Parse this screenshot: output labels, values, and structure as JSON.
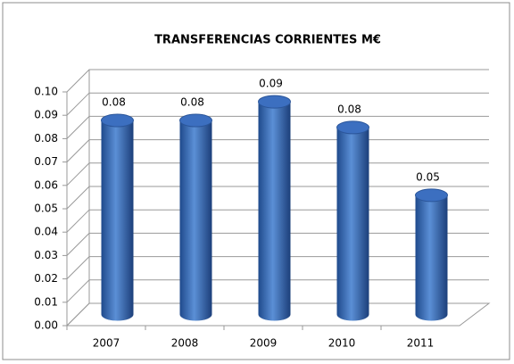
{
  "chart_data": {
    "type": "bar",
    "title": "TRANSFERENCIAS CORRIENTES M€",
    "categories": [
      "2007",
      "2008",
      "2009",
      "2010",
      "2011"
    ],
    "values": [
      0.083,
      0.083,
      0.091,
      0.08,
      0.051
    ],
    "value_labels": [
      "0.08",
      "0.08",
      "0.09",
      "0.08",
      "0.05"
    ],
    "color": "#3a6db5",
    "ylim": [
      0,
      0.1
    ],
    "yticks": [
      {
        "value": 0,
        "label": "0.00"
      },
      {
        "value": 0.01,
        "label": "0.01"
      },
      {
        "value": 0.02,
        "label": "0.02"
      },
      {
        "value": 0.03,
        "label": "0.03"
      },
      {
        "value": 0.04,
        "label": "0.04"
      },
      {
        "value": 0.05,
        "label": "0.05"
      },
      {
        "value": 0.06,
        "label": "0.06"
      },
      {
        "value": 0.07,
        "label": "0.07"
      },
      {
        "value": 0.08,
        "label": "0.08"
      },
      {
        "value": 0.09,
        "label": "0.09"
      },
      {
        "value": 0.1,
        "label": "0.10"
      }
    ],
    "grid": true
  }
}
